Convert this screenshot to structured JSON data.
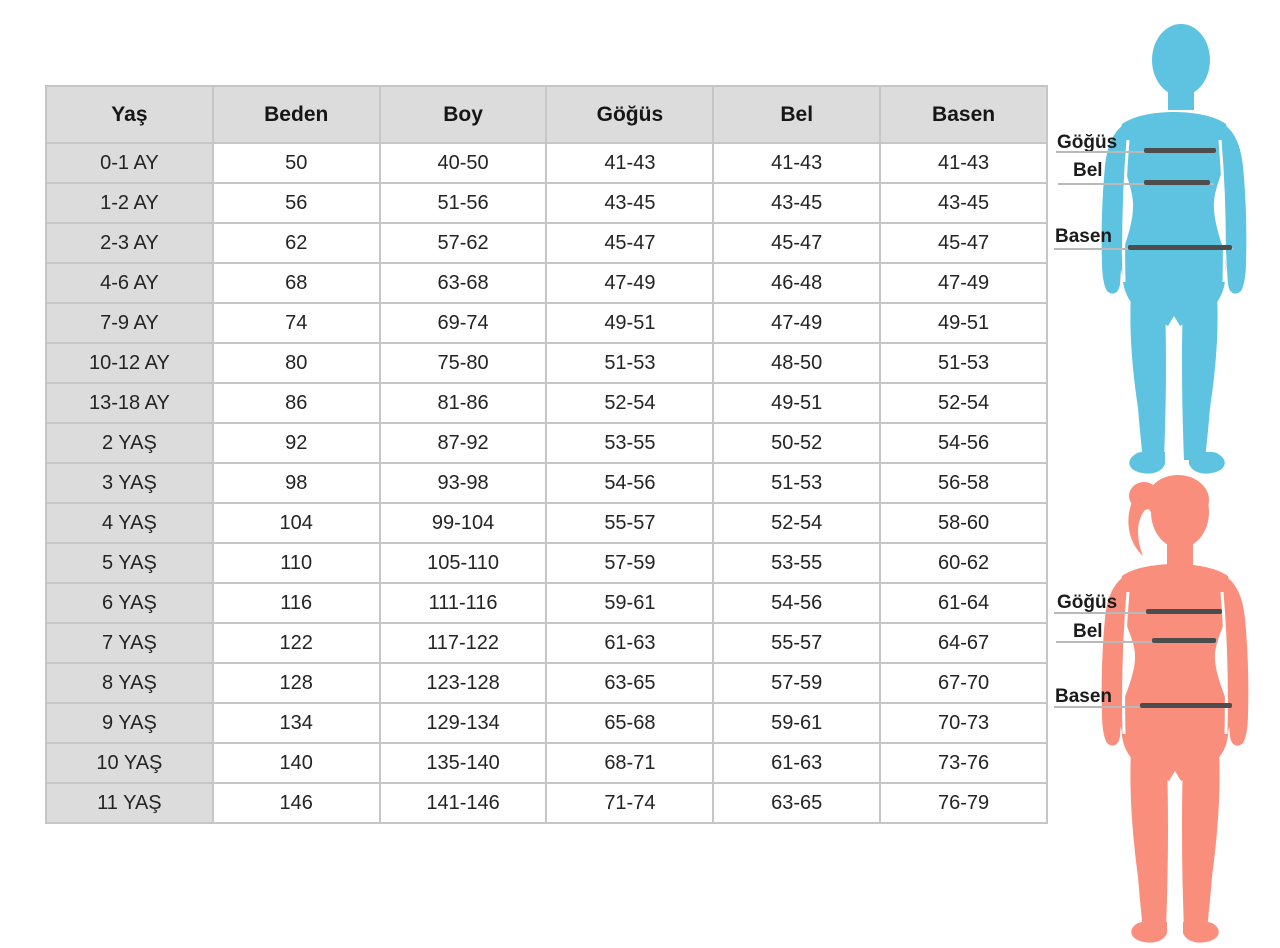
{
  "size_table": {
    "columns": [
      "Yaş",
      "Beden",
      "Boy",
      "Göğüs",
      "Bel",
      "Basen"
    ],
    "rows": [
      [
        "0-1 AY",
        "50",
        "40-50",
        "41-43",
        "41-43",
        "41-43"
      ],
      [
        "1-2 AY",
        "56",
        "51-56",
        "43-45",
        "43-45",
        "43-45"
      ],
      [
        "2-3 AY",
        "62",
        "57-62",
        "45-47",
        "45-47",
        "45-47"
      ],
      [
        "4-6 AY",
        "68",
        "63-68",
        "47-49",
        "46-48",
        "47-49"
      ],
      [
        "7-9 AY",
        "74",
        "69-74",
        "49-51",
        "47-49",
        "49-51"
      ],
      [
        "10-12 AY",
        "80",
        "75-80",
        "51-53",
        "48-50",
        "51-53"
      ],
      [
        "13-18 AY",
        "86",
        "81-86",
        "52-54",
        "49-51",
        "52-54"
      ],
      [
        "2 YAŞ",
        "92",
        "87-92",
        "53-55",
        "50-52",
        "54-56"
      ],
      [
        "3 YAŞ",
        "98",
        "93-98",
        "54-56",
        "51-53",
        "56-58"
      ],
      [
        "4 YAŞ",
        "104",
        "99-104",
        "55-57",
        "52-54",
        "58-60"
      ],
      [
        "5 YAŞ",
        "110",
        "105-110",
        "57-59",
        "53-55",
        "60-62"
      ],
      [
        "6 YAŞ",
        "116",
        "111-116",
        "59-61",
        "54-56",
        "61-64"
      ],
      [
        "7 YAŞ",
        "122",
        "117-122",
        "61-63",
        "55-57",
        "64-67"
      ],
      [
        "8 YAŞ",
        "128",
        "123-128",
        "63-65",
        "57-59",
        "67-70"
      ],
      [
        "9 YAŞ",
        "134",
        "129-134",
        "65-68",
        "59-61",
        "70-73"
      ],
      [
        "10 YAŞ",
        "140",
        "135-140",
        "68-71",
        "61-63",
        "73-76"
      ],
      [
        "11 YAŞ",
        "146",
        "141-146",
        "71-74",
        "63-65",
        "76-79"
      ]
    ]
  },
  "figures": {
    "child": {
      "color": "#5ec3e1",
      "chest_label": "Göğüs",
      "waist_label": "Bel",
      "hip_label": "Basen"
    },
    "girl": {
      "color": "#f98e7d",
      "chest_label": "Göğüs",
      "waist_label": "Bel",
      "hip_label": "Basen"
    }
  },
  "colors": {
    "header_bg": "#dcdcdc",
    "grid_border": "#c6c6c6",
    "outer_border": "#9e9e9e",
    "thin_line": "#b9b9b9",
    "thick_line": "#4d4d4d"
  }
}
